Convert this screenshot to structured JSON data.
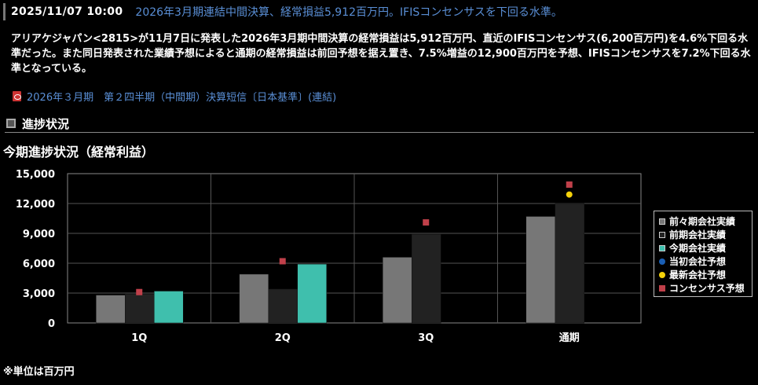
{
  "header": {
    "date": "2025/11/07 10:00",
    "headline": "2026年3月期連結中間決算、経常損益5,912百万円。IFISコンセンサスを下回る水準。"
  },
  "article": {
    "body": "アリアケジャパン<2815>が11月7日に発表した2026年3月期中間決算の経常損益は5,912百万円、直近のIFISコンセンサス(6,200百万円)を4.6%下回る水準だった。また同日発表された業績予想によると通期の経常損益は前回予想を据え置き、7.5%増益の12,900百万円を予想、IFISコンセンサスを7.2%下回る水準となっている。",
    "doc_link": "2026年３月期　第２四半期（中間期）決算短信〔日本基準〕(連結)",
    "doc_icon": "pdf-icon"
  },
  "section": {
    "title": "進捗状況",
    "icon": "square-bullet-icon"
  },
  "chart_data": {
    "type": "bar",
    "title": "今期進捗状況（経常利益）",
    "categories": [
      "1Q",
      "2Q",
      "3Q",
      "通期"
    ],
    "ylim": [
      0,
      15000
    ],
    "yticks": [
      "0",
      "3,000",
      "6,000",
      "9,000",
      "12,000",
      "15,000"
    ],
    "grid": true,
    "legend_position": "right",
    "series": [
      {
        "name": "前々期会社実績",
        "kind": "bar",
        "color": "#777777",
        "values": [
          2800,
          4900,
          6600,
          10700
        ]
      },
      {
        "name": "前期会社実績",
        "kind": "bar",
        "color": "#222222",
        "values": [
          2900,
          3400,
          8900,
          12000
        ]
      },
      {
        "name": "今期会社実績",
        "kind": "bar",
        "color": "#3fbfad",
        "values": [
          3200,
          5912,
          null,
          null
        ]
      },
      {
        "name": "当初会社予想",
        "kind": "circle",
        "color": "#1a5fb4",
        "values": [
          null,
          null,
          null,
          null
        ]
      },
      {
        "name": "最新会社予想",
        "kind": "circle",
        "color": "#f5d20a",
        "values": [
          null,
          null,
          null,
          12900
        ]
      },
      {
        "name": "コンセンサス予想",
        "kind": "square",
        "color": "#c0404a",
        "values": [
          3100,
          6200,
          10100,
          13900
        ]
      }
    ]
  },
  "footnote": "※単位は百万円"
}
